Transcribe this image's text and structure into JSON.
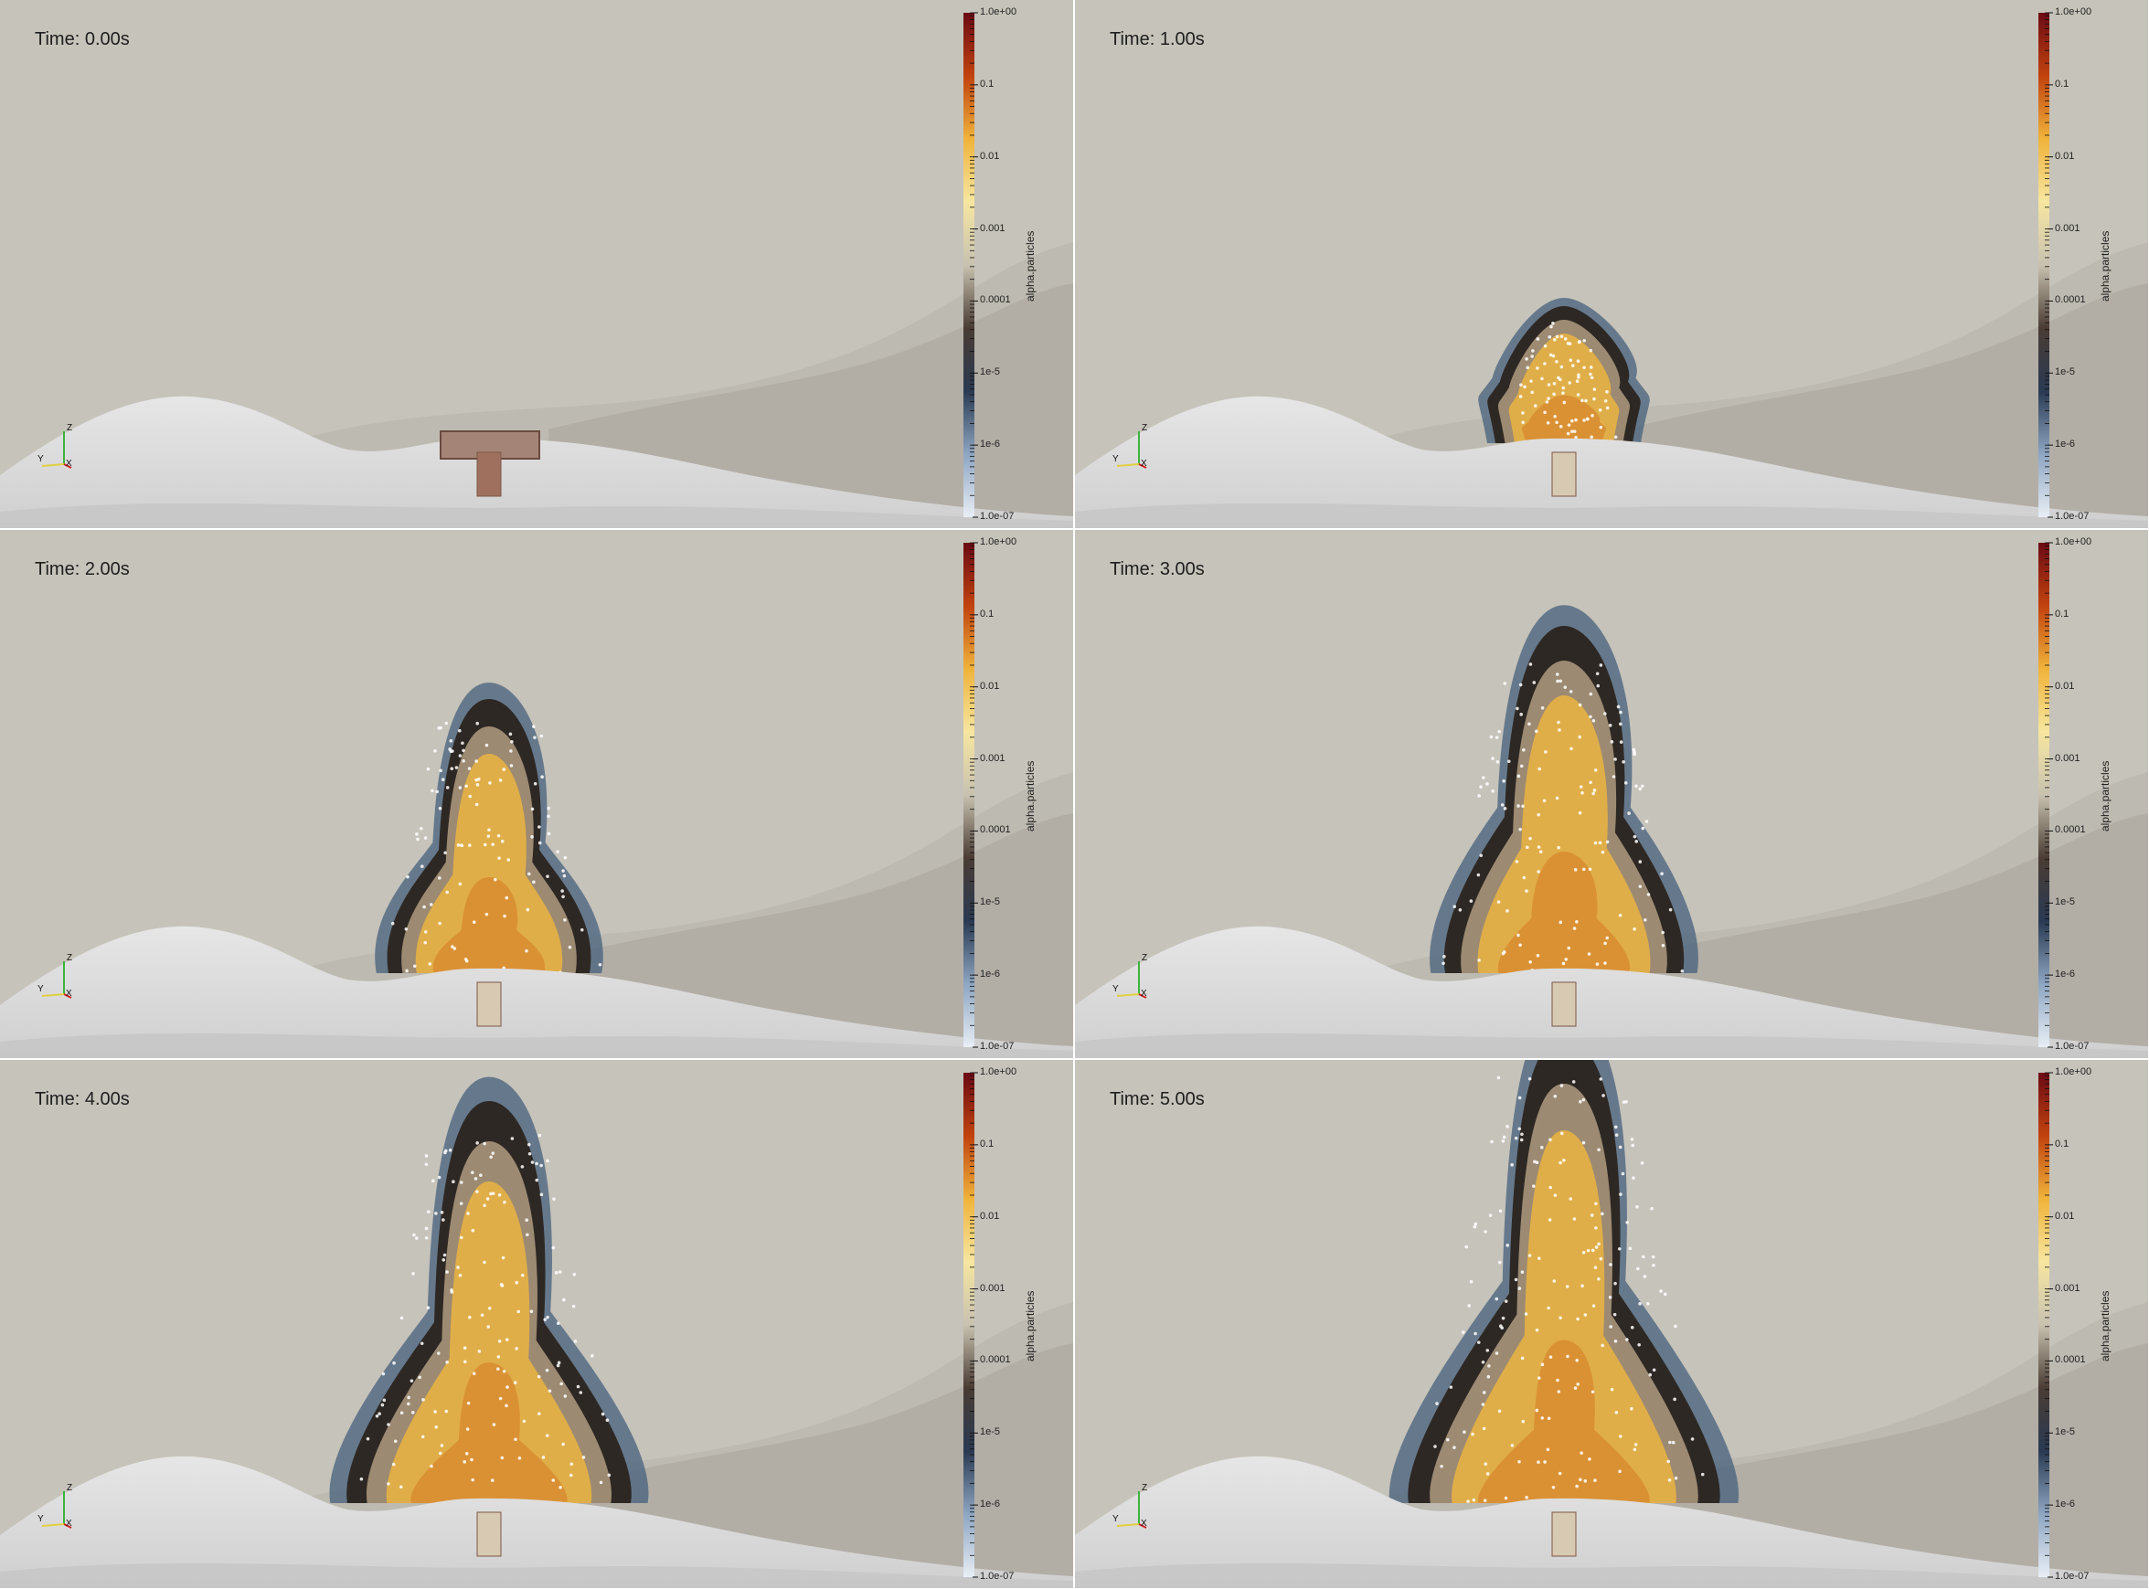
{
  "panels": [
    {
      "time": "Time: 0.00s",
      "plume_stage": 0
    },
    {
      "time": "Time: 1.00s",
      "plume_stage": 1
    },
    {
      "time": "Time: 2.00s",
      "plume_stage": 2
    },
    {
      "time": "Time: 3.00s",
      "plume_stage": 3
    },
    {
      "time": "Time: 4.00s",
      "plume_stage": 4
    },
    {
      "time": "Time: 5.00s",
      "plume_stage": 5
    }
  ],
  "colorbar": {
    "title": "alpha.particles",
    "scale": "log",
    "ticks": [
      "1.0e+00",
      "0.1",
      "0.01",
      "0.001",
      "0.0001",
      "1e-5",
      "1e-6",
      "1.0e-07"
    ],
    "colors": [
      "#6b0a14",
      "#c1420e",
      "#f0b33a",
      "#f6e6a0",
      "#c8c2b0",
      "#4a3c34",
      "#2a3a52",
      "#8ea6c2",
      "#e8eef5"
    ]
  },
  "axes": {
    "z": "Z",
    "y": "Y",
    "x": "X"
  },
  "colors": {
    "background": "#c6c3ba",
    "terrain": "#d9d9d9",
    "plume_core": "#eab446",
    "plume_hot": "#d36a1a",
    "plume_edge": "#3a3430",
    "plume_halo": "#3f5772"
  }
}
